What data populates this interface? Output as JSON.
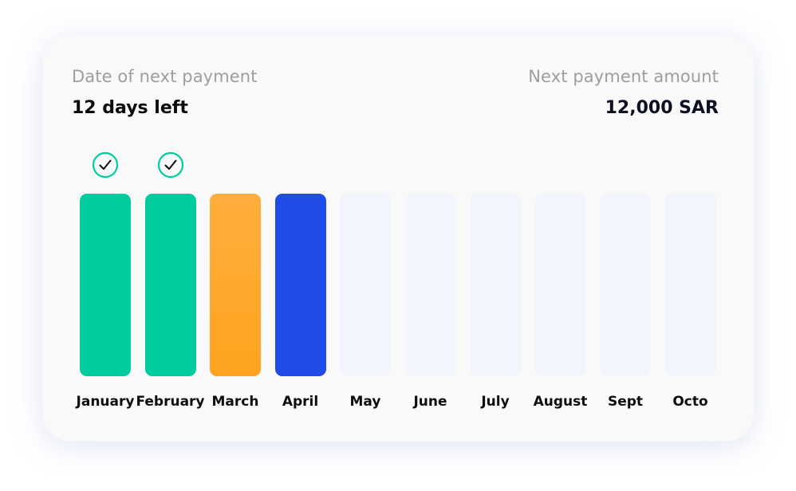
{
  "header": {
    "next_payment_date_label": "Date of next payment",
    "next_payment_date_value": "12 days left",
    "next_payment_amount_label": "Next payment amount",
    "next_payment_amount_value": "12,000 SAR"
  },
  "colors": {
    "paid": "#00cc9d",
    "current": "#ffa31f",
    "next": "#1f4be8",
    "upcoming": "#f2f5fd"
  },
  "months": [
    {
      "name": "January",
      "status": "paid",
      "check_icon": "check-circle-icon"
    },
    {
      "name": "February",
      "status": "paid",
      "check_icon": "check-circle-icon"
    },
    {
      "name": "March",
      "status": "current"
    },
    {
      "name": "April",
      "status": "next"
    },
    {
      "name": "May",
      "status": "upcoming"
    },
    {
      "name": "June",
      "status": "upcoming"
    },
    {
      "name": "July",
      "status": "upcoming"
    },
    {
      "name": "August",
      "status": "upcoming"
    },
    {
      "name": "Sept",
      "status": "upcoming"
    },
    {
      "name": "Octo",
      "status": "upcoming"
    }
  ]
}
